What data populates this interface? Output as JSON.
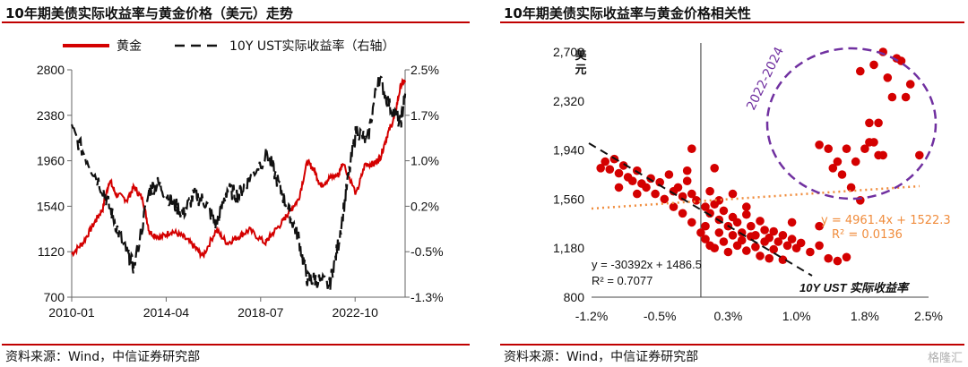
{
  "left_panel": {
    "title": "10年期美债实际收益率与黄金价格（美元）走势",
    "source": "资料来源：Wind，中信证券研究部"
  },
  "right_panel": {
    "title": "10年期美债实际收益率与黄金价格相关性",
    "source": "资料来源：Wind，中信证券研究部",
    "watermark": "格隆汇"
  },
  "colors": {
    "gold": "#d40000",
    "yield": "#111111",
    "rule": "#c00000",
    "trend_gold": "#f08c3c",
    "circle": "#7030a0"
  },
  "chart_data": [
    {
      "type": "line",
      "title": "10年期美债实际收益率与黄金价格（美元）走势",
      "x_ticks": [
        "2010-01",
        "2014-04",
        "2018-07",
        "2022-10"
      ],
      "y_left": {
        "ticks": [
          "2800",
          "2380",
          "1960",
          "1540",
          "1120",
          "700"
        ],
        "ylim": [
          700,
          2800
        ]
      },
      "y_right": {
        "ticks": [
          "2.5%",
          "1.7%",
          "1.0%",
          "0.2%",
          "-0.5%",
          "-1.3%"
        ],
        "ylim": [
          -1.3,
          2.5
        ]
      },
      "grid": false,
      "legend_position": "top",
      "series": [
        {
          "name": "黄金",
          "axis": "left",
          "x": [
            2010.0,
            2010.5,
            2011.0,
            2011.4,
            2011.7,
            2012.0,
            2012.5,
            2012.8,
            2013.2,
            2013.5,
            2014.0,
            2014.5,
            2015.0,
            2015.5,
            2015.9,
            2016.5,
            2017.0,
            2017.5,
            2018.0,
            2018.7,
            2019.0,
            2019.5,
            2019.8,
            2020.2,
            2020.6,
            2020.9,
            2021.2,
            2021.6,
            2022.0,
            2022.2,
            2022.8,
            2023.2,
            2023.6,
            2023.9,
            2024.2,
            2024.5,
            2024.8,
            2025.0
          ],
          "values": [
            1100,
            1200,
            1380,
            1520,
            1780,
            1650,
            1600,
            1720,
            1600,
            1300,
            1250,
            1310,
            1260,
            1170,
            1080,
            1320,
            1200,
            1260,
            1320,
            1200,
            1280,
            1400,
            1500,
            1600,
            1950,
            1880,
            1730,
            1800,
            1830,
            1950,
            1650,
            1930,
            1930,
            2000,
            2200,
            2350,
            2650,
            2700
          ]
        },
        {
          "name": "10Y UST实际收益率（右轴）",
          "axis": "right",
          "x": [
            2010.0,
            2010.7,
            2011.4,
            2011.9,
            2012.4,
            2012.8,
            2013.5,
            2013.9,
            2014.5,
            2015.0,
            2015.5,
            2016.0,
            2016.5,
            2017.0,
            2017.5,
            2018.0,
            2018.8,
            2019.3,
            2019.8,
            2020.2,
            2020.6,
            2021.0,
            2021.6,
            2022.0,
            2022.4,
            2022.8,
            2023.3,
            2023.8,
            2024.3,
            2024.8,
            2025.0
          ],
          "values": [
            1.5,
            1.0,
            0.5,
            0.0,
            -0.5,
            -0.8,
            0.5,
            0.6,
            0.3,
            0.1,
            0.4,
            0.3,
            -0.1,
            0.5,
            0.4,
            0.7,
            1.1,
            0.6,
            0.1,
            -0.3,
            -1.0,
            -1.0,
            -1.1,
            -0.4,
            0.6,
            1.5,
            1.3,
            2.4,
            1.9,
            1.6,
            2.1
          ]
        }
      ]
    },
    {
      "type": "scatter",
      "title": "10年期美债实际收益率与黄金价格相关性",
      "x_ticks": [
        "-1.2%",
        "-0.5%",
        "0.3%",
        "1.0%",
        "1.8%",
        "2.5%"
      ],
      "xlim": [
        -1.2,
        2.5
      ],
      "y_ticks": [
        "2,700",
        "2,320",
        "1,940",
        "1,560",
        "1,180",
        "800"
      ],
      "ylim": [
        800,
        2700
      ],
      "ylabel": "美元",
      "xlabel": "10Y UST 实际收益率",
      "grid": false,
      "annotations": [
        {
          "text": "2022-2024"
        },
        {
          "text": "y = -30392x + 1486.5"
        },
        {
          "text": "R² = 0.7077"
        },
        {
          "text": "y = 4961.4x + 1522.3"
        },
        {
          "text": "R² = 0.0136"
        }
      ],
      "trendlines": [
        {
          "slope": -30392,
          "intercept": 1486.5,
          "r2": 0.7077,
          "x_range": [
            -1.2,
            1.3
          ],
          "style": "dashed"
        },
        {
          "slope": 4961.4,
          "intercept": 1522.3,
          "r2": 0.0136,
          "x_range": [
            -1.2,
            2.5
          ],
          "style": "dotted"
        }
      ],
      "points": [
        [
          -1.1,
          1800
        ],
        [
          -1.05,
          1850
        ],
        [
          -1.0,
          1790
        ],
        [
          -0.95,
          1870
        ],
        [
          -0.9,
          1760
        ],
        [
          -0.85,
          1820
        ],
        [
          -0.8,
          1730
        ],
        [
          -0.75,
          1700
        ],
        [
          -0.7,
          1780
        ],
        [
          -0.65,
          1680
        ],
        [
          -0.6,
          1650
        ],
        [
          -0.55,
          1720
        ],
        [
          -0.5,
          1600
        ],
        [
          -0.45,
          1690
        ],
        [
          -0.4,
          1560
        ],
        [
          -0.3,
          1620
        ],
        [
          -0.25,
          1650
        ],
        [
          -0.2,
          1580
        ],
        [
          -0.1,
          1600
        ],
        [
          -0.05,
          1550
        ],
        [
          -0.9,
          1650
        ],
        [
          -0.7,
          1600
        ],
        [
          -0.35,
          1750
        ],
        [
          -0.15,
          1700
        ],
        [
          0.05,
          1500
        ],
        [
          0.1,
          1450
        ],
        [
          0.15,
          1520
        ],
        [
          0.2,
          1400
        ],
        [
          0.25,
          1470
        ],
        [
          0.3,
          1350
        ],
        [
          0.35,
          1420
        ],
        [
          0.4,
          1380
        ],
        [
          0.45,
          1300
        ],
        [
          0.5,
          1440
        ],
        [
          0.55,
          1350
        ],
        [
          0.6,
          1280
        ],
        [
          0.65,
          1390
        ],
        [
          0.7,
          1320
        ],
        [
          0.75,
          1260
        ],
        [
          0.8,
          1310
        ],
        [
          0.85,
          1230
        ],
        [
          0.9,
          1280
        ],
        [
          0.95,
          1200
        ],
        [
          1.0,
          1250
        ],
        [
          1.05,
          1180
        ],
        [
          1.1,
          1220
        ],
        [
          0.05,
          1250
        ],
        [
          0.1,
          1200
        ],
        [
          0.15,
          1180
        ],
        [
          0.2,
          1300
        ],
        [
          0.25,
          1230
        ],
        [
          0.3,
          1150
        ],
        [
          0.35,
          1280
        ],
        [
          0.4,
          1200
        ],
        [
          0.45,
          1240
        ],
        [
          0.5,
          1160
        ],
        [
          0.55,
          1270
        ],
        [
          0.6,
          1190
        ],
        [
          0.65,
          1120
        ],
        [
          0.7,
          1230
        ],
        [
          0.75,
          1100
        ],
        [
          0.8,
          1170
        ],
        [
          0.9,
          1090
        ],
        [
          1.2,
          1150
        ],
        [
          1.3,
          1200
        ],
        [
          1.4,
          1100
        ],
        [
          1.5,
          1080
        ],
        [
          1.6,
          1110
        ],
        [
          0.0,
          1300
        ],
        [
          -0.1,
          1380
        ],
        [
          -0.2,
          1450
        ],
        [
          -0.3,
          1500
        ],
        [
          0.05,
          1350
        ],
        [
          0.2,
          1550
        ],
        [
          0.35,
          1600
        ],
        [
          0.5,
          1500
        ],
        [
          0.1,
          1620
        ],
        [
          -0.15,
          1780
        ],
        [
          0.15,
          1800
        ],
        [
          -0.1,
          1950
        ],
        [
          1.0,
          1380
        ],
        [
          1.3,
          1350
        ],
        [
          1.3,
          1980
        ],
        [
          1.4,
          1950
        ],
        [
          1.45,
          1800
        ],
        [
          1.5,
          1850
        ],
        [
          1.55,
          1750
        ],
        [
          1.6,
          1950
        ],
        [
          1.65,
          1650
        ],
        [
          1.7,
          1850
        ],
        [
          1.75,
          1550
        ],
        [
          1.8,
          1950
        ],
        [
          1.85,
          2000
        ],
        [
          1.9,
          2000
        ],
        [
          1.95,
          1900
        ],
        [
          2.0,
          1900
        ],
        [
          1.85,
          2150
        ],
        [
          1.95,
          2150
        ],
        [
          2.05,
          2500
        ],
        [
          2.1,
          2350
        ],
        [
          2.15,
          2650
        ],
        [
          2.2,
          2630
        ],
        [
          2.25,
          2350
        ],
        [
          2.3,
          2450
        ],
        [
          2.0,
          2700
        ],
        [
          1.9,
          2600
        ],
        [
          1.75,
          2550
        ],
        [
          2.4,
          1900
        ]
      ]
    }
  ]
}
